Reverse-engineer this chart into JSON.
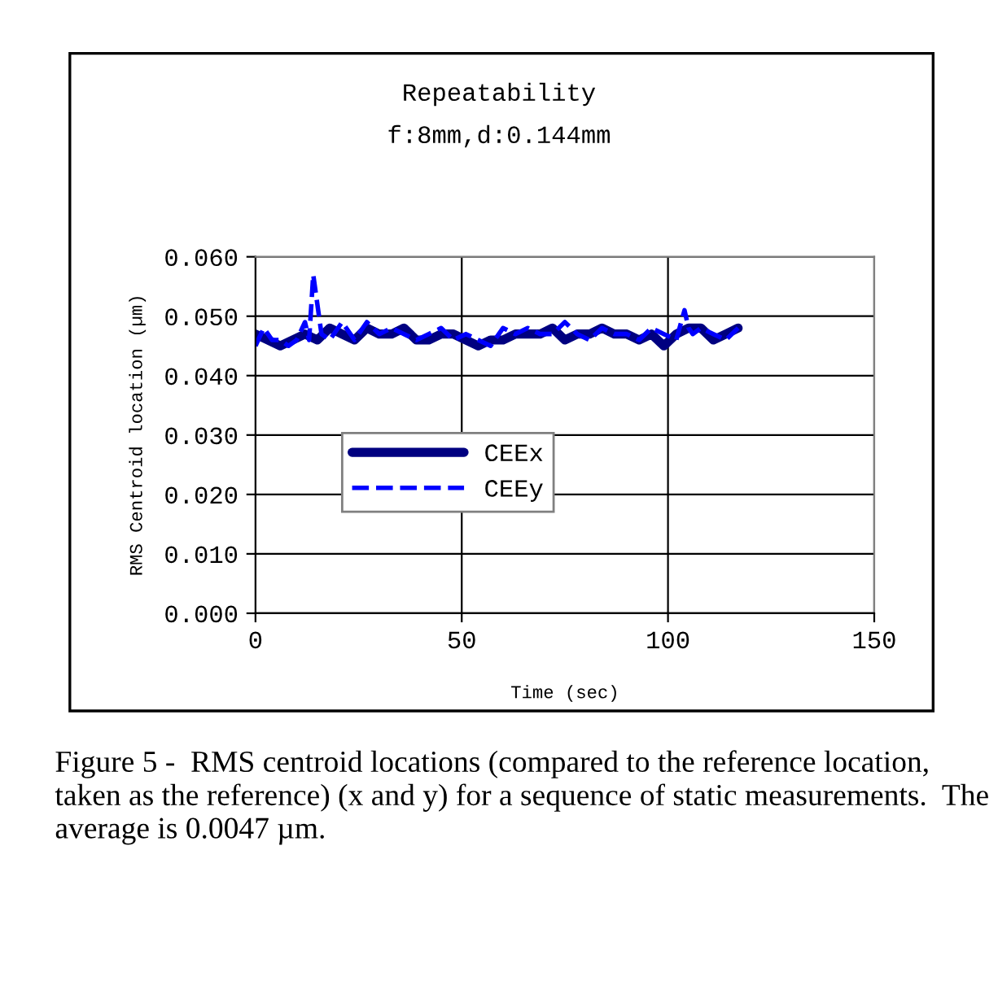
{
  "chart_data": {
    "type": "line",
    "title": "Repeatability",
    "subtitle": "f:8mm,d:0.144mm",
    "xlabel": "Time (sec)",
    "ylabel": "RMS Centroid location (µm)",
    "xlim": [
      0,
      150
    ],
    "xticks": [
      0,
      50,
      100,
      150
    ],
    "ylim": [
      0,
      0.06
    ],
    "yticks": [
      {
        "value": 0,
        "label": "0.000"
      },
      {
        "value": 0.01,
        "label": "0.010"
      },
      {
        "value": 0.02,
        "label": "0.020"
      },
      {
        "value": 0.03,
        "label": "0.030"
      },
      {
        "value": 0.04,
        "label": "0.040"
      },
      {
        "value": 0.05,
        "label": "0.050"
      },
      {
        "value": 0.06,
        "label": "0.060"
      }
    ],
    "grid": true,
    "legend": "left",
    "marker": "none",
    "series": [
      {
        "name": "CEEx",
        "color": "#000080",
        "line_style": "solid",
        "x": [
          0,
          3,
          6,
          9,
          12,
          15,
          18,
          21,
          24,
          27,
          30,
          33,
          36,
          39,
          42,
          45,
          48,
          51,
          54,
          57,
          60,
          63,
          66,
          69,
          72,
          75,
          78,
          81,
          84,
          87,
          90,
          93,
          96,
          99,
          102,
          105,
          108,
          111,
          114,
          117
        ],
        "values": [
          0.047,
          0.046,
          0.045,
          0.046,
          0.047,
          0.046,
          0.048,
          0.047,
          0.046,
          0.048,
          0.047,
          0.047,
          0.048,
          0.046,
          0.046,
          0.047,
          0.047,
          0.046,
          0.045,
          0.046,
          0.046,
          0.047,
          0.047,
          0.047,
          0.048,
          0.046,
          0.047,
          0.047,
          0.048,
          0.047,
          0.047,
          0.046,
          0.047,
          0.045,
          0.047,
          0.048,
          0.048,
          0.046,
          0.047,
          0.048
        ]
      },
      {
        "name": "CEEy",
        "color": "#0000ff",
        "line_style": "dashed",
        "x": [
          0,
          2,
          4,
          6,
          8,
          10,
          12,
          13,
          14,
          15,
          16,
          18,
          21,
          24,
          27,
          30,
          33,
          36,
          39,
          42,
          45,
          48,
          51,
          54,
          57,
          60,
          63,
          66,
          69,
          72,
          75,
          78,
          81,
          84,
          87,
          90,
          93,
          96,
          99,
          102,
          104,
          105,
          106,
          108,
          111,
          114,
          117
        ],
        "values": [
          0.045,
          0.048,
          0.046,
          0.046,
          0.045,
          0.046,
          0.049,
          0.046,
          0.057,
          0.052,
          0.047,
          0.046,
          0.049,
          0.046,
          0.049,
          0.047,
          0.048,
          0.047,
          0.046,
          0.047,
          0.048,
          0.046,
          0.047,
          0.046,
          0.045,
          0.048,
          0.047,
          0.048,
          0.047,
          0.047,
          0.049,
          0.047,
          0.046,
          0.048,
          0.047,
          0.047,
          0.046,
          0.048,
          0.047,
          0.046,
          0.051,
          0.048,
          0.047,
          0.048,
          0.047,
          0.046,
          0.048
        ]
      }
    ],
    "annotations": [
      "Figure 5 -  RMS centroid locations (compared to the reference location, taken as the reference) (x and y) for a sequence of static measurements.  The average is 0.0047 µm."
    ]
  }
}
